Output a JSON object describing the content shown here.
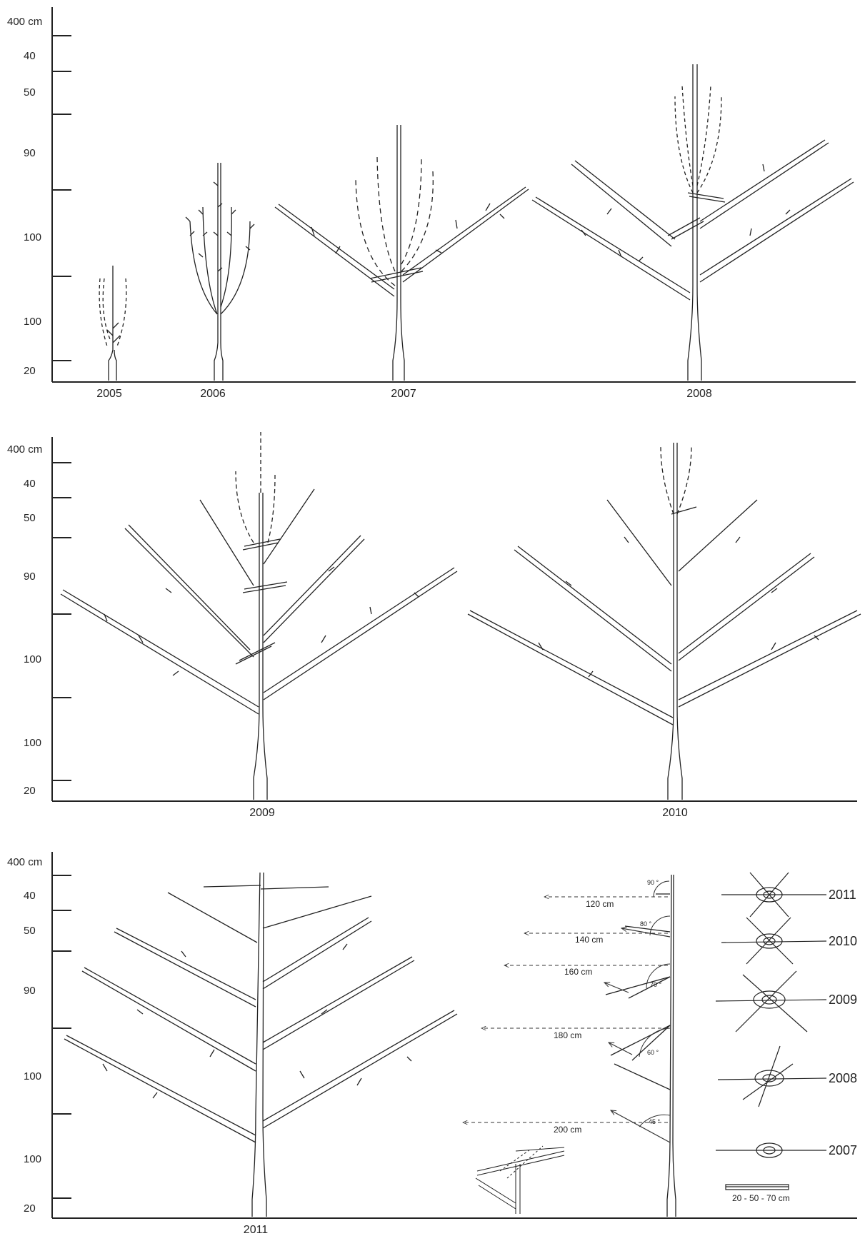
{
  "panels": [
    {
      "axis_labels": [
        "400 cm",
        "40",
        "50",
        "90",
        "100",
        "100",
        "20"
      ],
      "years": [
        "2005",
        "2006",
        "2007",
        "2008"
      ]
    },
    {
      "axis_labels": [
        "400 cm",
        "40",
        "50",
        "90",
        "100",
        "100",
        "20"
      ],
      "years": [
        "2009",
        "2010"
      ]
    },
    {
      "axis_labels": [
        "400 cm",
        "40",
        "50",
        "90",
        "100",
        "100",
        "20"
      ],
      "years": [
        "2011"
      ]
    }
  ],
  "scheme": {
    "distances": [
      "120 cm",
      "140 cm",
      "160 cm",
      "180 cm",
      "200 cm"
    ],
    "angles": [
      "90 °",
      "80 °",
      "70 °",
      "60 °",
      "45 °"
    ]
  },
  "legend": {
    "years": [
      "2011",
      "2010",
      "2009",
      "2008",
      "2007"
    ],
    "scale": "20 - 50 - 70 cm"
  },
  "colors": {
    "line": "#222222",
    "background": "#ffffff"
  }
}
